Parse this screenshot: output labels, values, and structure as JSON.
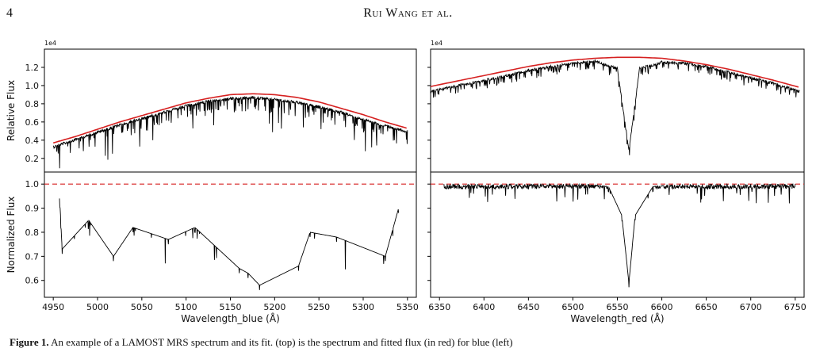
{
  "page": {
    "page_number": "4",
    "running_head": "Rui Wang et al.",
    "caption_label": "Figure 1.",
    "caption_text": "An example of a LAMOST MRS spectrum and its fit. (top) is the spectrum and fitted flux (in red) for blue (left)"
  },
  "chart_data": [
    {
      "type": "line",
      "panel": "top-left",
      "ylabel": "Relative Flux",
      "offset_text": "1e4",
      "xlim": [
        4940,
        5360
      ],
      "ylim": [
        0.05,
        1.4
      ],
      "yticks": [
        "0.2",
        "0.4",
        "0.6",
        "0.8",
        "1.0",
        "1.2"
      ],
      "series": [
        {
          "role": "spectrum",
          "color": "#000000",
          "x": [
            4950,
            4975,
            5000,
            5025,
            5050,
            5075,
            5100,
            5125,
            5150,
            5175,
            5200,
            5225,
            5250,
            5275,
            5300,
            5325,
            5350
          ],
          "y": [
            0.34,
            0.42,
            0.5,
            0.58,
            0.65,
            0.72,
            0.79,
            0.84,
            0.87,
            0.88,
            0.86,
            0.83,
            0.78,
            0.72,
            0.64,
            0.57,
            0.51
          ]
        },
        {
          "role": "fit",
          "color": "#d62020",
          "x": [
            4950,
            4975,
            5000,
            5025,
            5050,
            5075,
            5100,
            5125,
            5150,
            5175,
            5200,
            5225,
            5250,
            5275,
            5300,
            5325,
            5350
          ],
          "y": [
            0.37,
            0.44,
            0.52,
            0.6,
            0.67,
            0.74,
            0.81,
            0.86,
            0.9,
            0.91,
            0.9,
            0.87,
            0.82,
            0.75,
            0.68,
            0.6,
            0.53
          ]
        }
      ]
    },
    {
      "type": "line",
      "panel": "bottom-left",
      "ylabel": "Normalized Flux",
      "xlabel": "Wavelength_blue (Å)",
      "xlim": [
        4940,
        5360
      ],
      "ylim": [
        0.53,
        1.05
      ],
      "xticks": [
        "4950",
        "5000",
        "5050",
        "5100",
        "5150",
        "5200",
        "5250",
        "5300",
        "5350"
      ],
      "yticks": [
        "0.6",
        "0.7",
        "0.8",
        "0.9",
        "1.0"
      ],
      "reference_line": 1.0,
      "series": [
        {
          "role": "normalized",
          "color": "#000000",
          "x": [
            4957,
            4960,
            4990,
            5018,
            5040,
            5080,
            5110,
            5160,
            5170,
            5183,
            5227,
            5240,
            5270,
            5325,
            5340
          ],
          "y": [
            0.94,
            0.71,
            0.83,
            0.68,
            0.8,
            0.75,
            0.8,
            0.63,
            0.61,
            0.56,
            0.64,
            0.78,
            0.76,
            0.68,
            0.88
          ]
        }
      ]
    },
    {
      "type": "line",
      "panel": "top-right",
      "offset_text": "1e4",
      "xlim": [
        6340,
        6760
      ],
      "ylim": [
        0.05,
        1.4
      ],
      "series": [
        {
          "role": "spectrum",
          "color": "#000000",
          "x": [
            6340,
            6375,
            6400,
            6425,
            6450,
            6475,
            6500,
            6525,
            6550,
            6563,
            6575,
            6600,
            6625,
            6650,
            6675,
            6700,
            6725,
            6755
          ],
          "y": [
            0.95,
            1.02,
            1.07,
            1.12,
            1.18,
            1.22,
            1.26,
            1.28,
            1.2,
            0.3,
            1.2,
            1.27,
            1.26,
            1.22,
            1.16,
            1.1,
            1.04,
            0.95
          ]
        },
        {
          "role": "fit",
          "color": "#d62020",
          "x": [
            6340,
            6375,
            6400,
            6425,
            6450,
            6475,
            6500,
            6525,
            6550,
            6575,
            6600,
            6625,
            6650,
            6675,
            6700,
            6725,
            6755
          ],
          "y": [
            0.99,
            1.06,
            1.11,
            1.16,
            1.21,
            1.25,
            1.28,
            1.3,
            1.31,
            1.31,
            1.3,
            1.27,
            1.23,
            1.18,
            1.12,
            1.06,
            0.98
          ]
        }
      ]
    },
    {
      "type": "line",
      "panel": "bottom-right",
      "xlabel": "Wavelength_red (Å)",
      "xlim": [
        6340,
        6760
      ],
      "ylim": [
        0.53,
        1.05
      ],
      "xticks": [
        "6350",
        "6400",
        "6450",
        "6500",
        "6550",
        "6600",
        "6650",
        "6700",
        "6750"
      ],
      "reference_line": 1.0,
      "series": [
        {
          "role": "normalized",
          "color": "#000000",
          "x": [
            6355,
            6400,
            6450,
            6500,
            6540,
            6555,
            6563,
            6570,
            6590,
            6650,
            6700,
            6750
          ],
          "y": [
            1.0,
            0.99,
            0.98,
            0.99,
            0.97,
            0.85,
            0.57,
            0.85,
            0.97,
            0.99,
            1.0,
            1.0
          ]
        }
      ]
    }
  ]
}
